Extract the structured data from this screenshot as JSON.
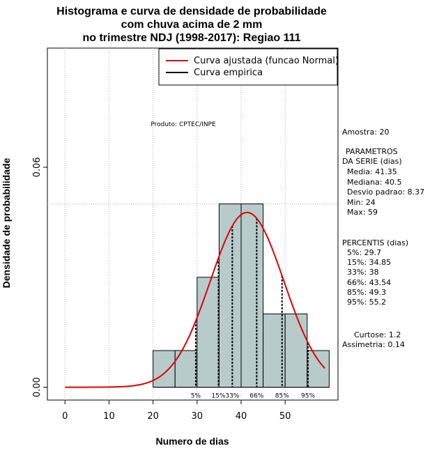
{
  "chart_data": {
    "type": "histogram",
    "title": [
      "Histograma e curva de densidade de probabilidade",
      "com chuva acima de 2 mm",
      "no trimestre NDJ (1998-2017): Regiao 111"
    ],
    "xlabel": "Numero de dias",
    "ylabel": "Densidade de probabilidade",
    "xlim": [
      -4,
      62
    ],
    "ylim": [
      -0.0035,
      0.0925
    ],
    "x_ticks": [
      "0",
      "10",
      "20",
      "30",
      "40",
      "50"
    ],
    "x_tick_values": [
      0,
      10,
      20,
      30,
      40,
      50
    ],
    "y_ticks": [
      "0.00",
      "0.06"
    ],
    "y_tick_values": [
      0.0,
      0.06
    ],
    "bins": [
      {
        "start": 20,
        "end": 25,
        "density": 0.01
      },
      {
        "start": 25,
        "end": 30,
        "density": 0.01
      },
      {
        "start": 30,
        "end": 35,
        "density": 0.03
      },
      {
        "start": 35,
        "end": 40,
        "density": 0.05
      },
      {
        "start": 40,
        "end": 45,
        "density": 0.05
      },
      {
        "start": 45,
        "end": 50,
        "density": 0.02
      },
      {
        "start": 50,
        "end": 55,
        "density": 0.02
      },
      {
        "start": 55,
        "end": 60,
        "density": 0.01
      }
    ],
    "normal_fit": {
      "mean": 41.35,
      "sd": 8.37,
      "x_range": [
        0,
        59
      ],
      "name": "Curva ajustada (funcao Normal)",
      "color": "#e00000"
    },
    "empirical_name": "Curva empirica",
    "percentile_lines": [
      {
        "label": "5%",
        "x": 29.7
      },
      {
        "label": "15%",
        "x": 34.85
      },
      {
        "label": "33%",
        "x": 38
      },
      {
        "label": "66%",
        "x": 43.54
      },
      {
        "label": "85%",
        "x": 49.3
      },
      {
        "label": "95%",
        "x": 55.2
      }
    ],
    "hline_density": 0.05,
    "bar_color": "#b8cbcb",
    "legend_position": "top-right",
    "annotation": "Produto: CPTEC/INPE"
  },
  "stats": {
    "amostra": "Amostra: 20",
    "param_header_1": "PARAMETROS",
    "param_header_2": "DA SERIE (dias)",
    "media": "Media: 41.35",
    "mediana": "Mediana: 40.5",
    "desvio": "Desvio padrao: 8.37",
    "min": "Min: 24",
    "max": "Max: 59",
    "percentis_header": "PERCENTIS (dias)",
    "p5": "5%: 29.7",
    "p15": "15%: 34.85",
    "p33": "33%: 38",
    "p66": "66%: 43.54",
    "p85": "85%: 49.3",
    "p95": "95%: 55.2",
    "curtose": "Curtose: 1.2",
    "assimetria": "Assimetria: 0.14"
  }
}
